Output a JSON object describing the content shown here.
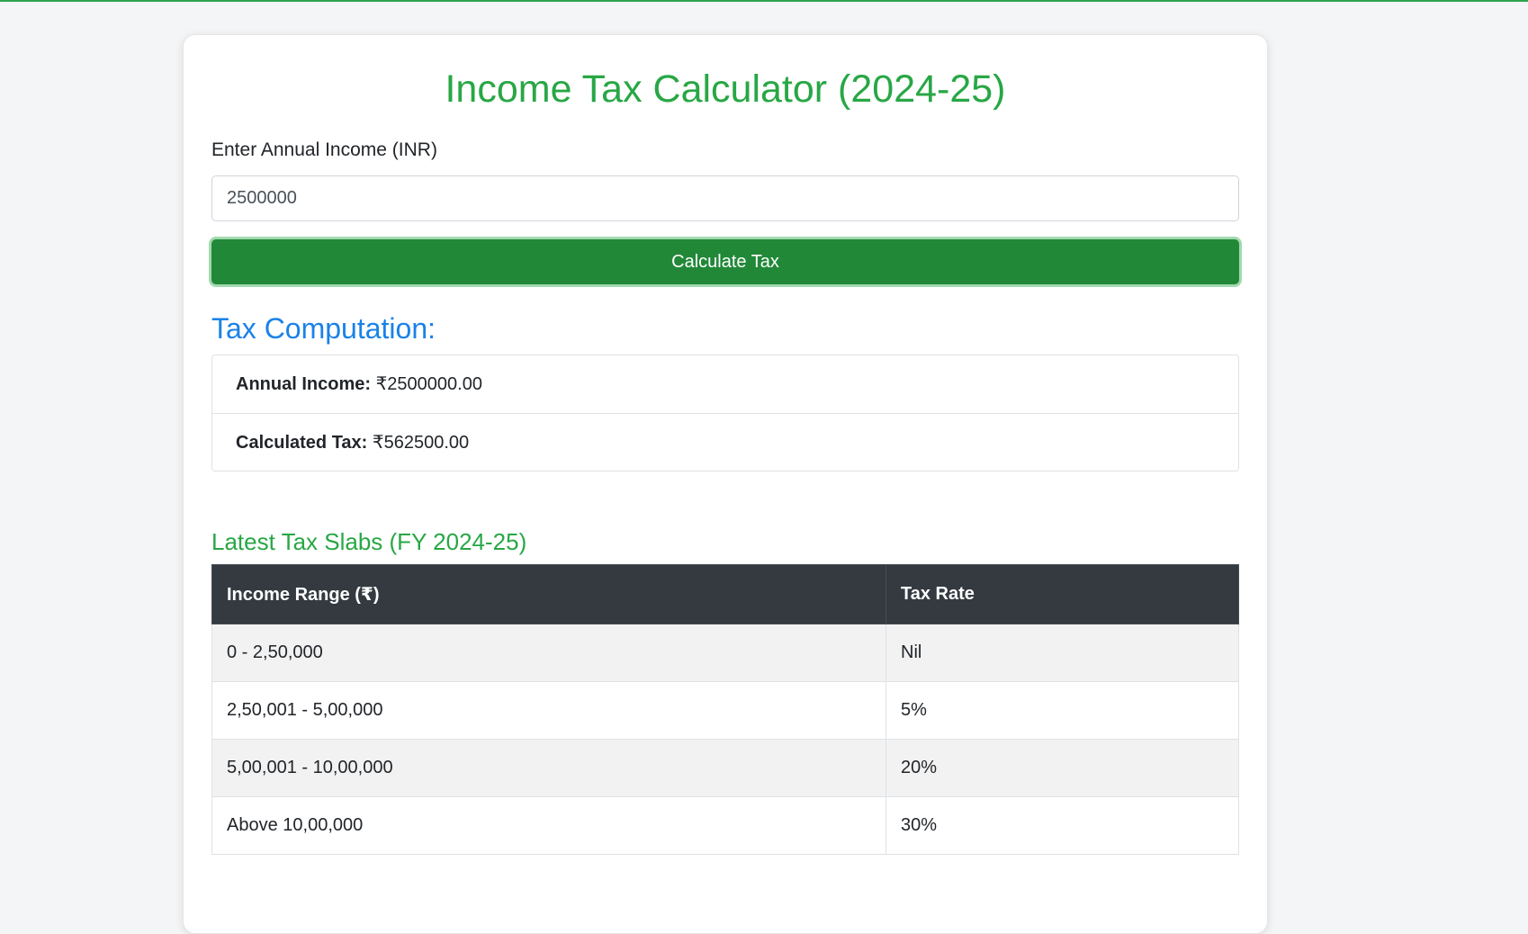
{
  "page": {
    "title": "Income Tax Calculator (2024-25)"
  },
  "form": {
    "income_label": "Enter Annual Income (INR)",
    "income_value": "2500000",
    "calculate_label": "Calculate Tax"
  },
  "result": {
    "heading": "Tax Computation:",
    "annual_income_key": "Annual Income:",
    "annual_income_value": "₹2500000.00",
    "calculated_tax_key": "Calculated Tax:",
    "calculated_tax_value": "₹562500.00"
  },
  "slabs": {
    "heading": "Latest Tax Slabs (FY 2024-25)",
    "columns": [
      "Income Range (₹)",
      "Tax Rate"
    ],
    "rows": [
      {
        "range": "0 - 2,50,000",
        "rate": "Nil"
      },
      {
        "range": "2,50,001 - 5,00,000",
        "rate": "5%"
      },
      {
        "range": "5,00,001 - 10,00,000",
        "rate": "20%"
      },
      {
        "range": "Above 10,00,000",
        "rate": "30%"
      }
    ]
  },
  "colors": {
    "accent_green": "#28a745",
    "button_green": "#218838",
    "heading_blue": "#1a82e8",
    "table_header": "#343a40"
  }
}
